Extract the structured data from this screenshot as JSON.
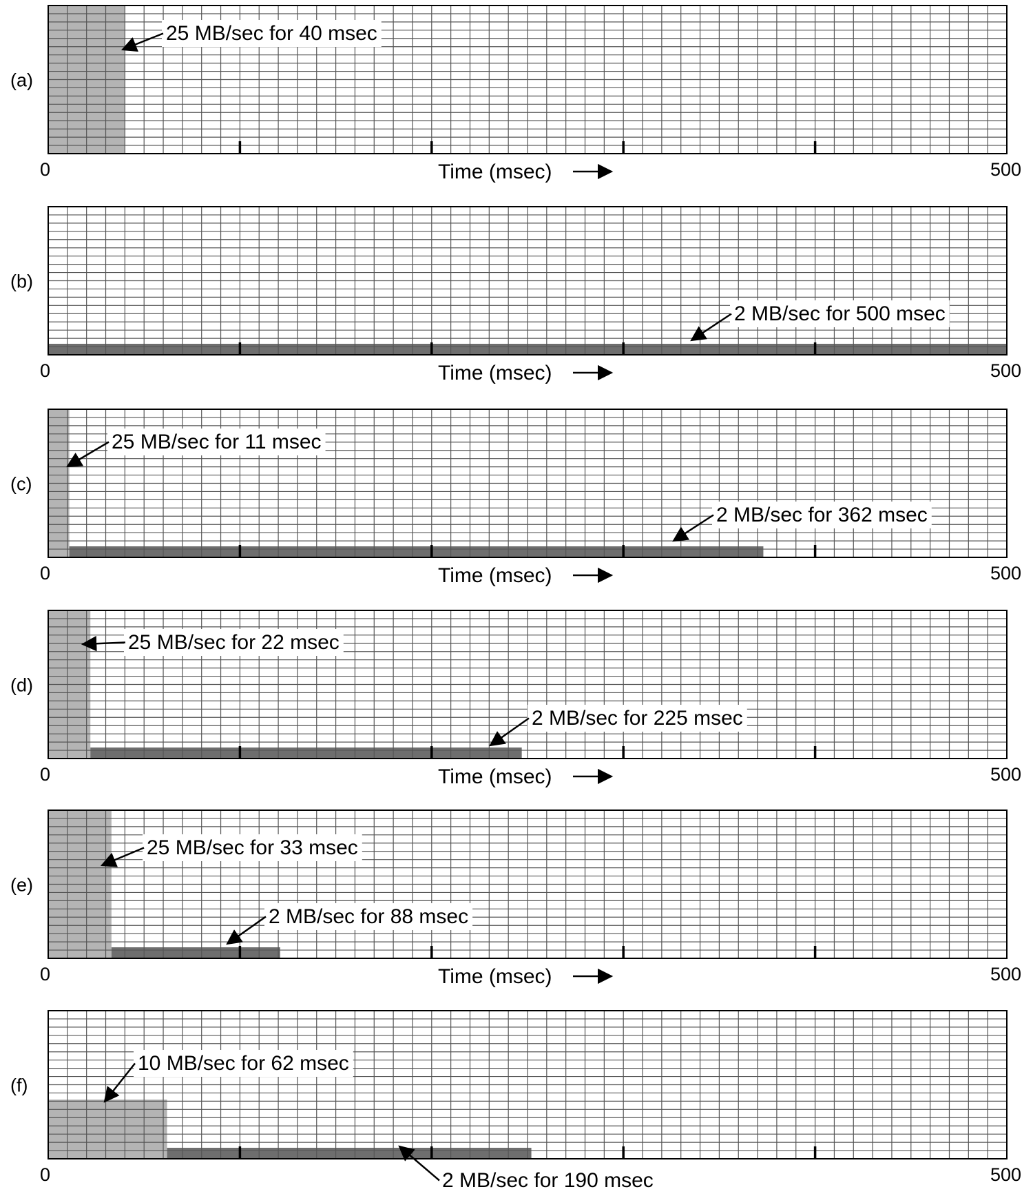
{
  "chart_data": [
    {
      "type": "area",
      "panel_label": "(a)",
      "xlabel": "Time (msec)",
      "xlim": [
        0,
        500
      ],
      "x_tick_labels": [
        "0",
        "500"
      ],
      "bursts": [
        {
          "rate_mb_per_sec": 25,
          "start_msec": 0,
          "duration_msec": 40,
          "label": "25 MB/sec for 40 msec"
        }
      ]
    },
    {
      "type": "area",
      "panel_label": "(b)",
      "xlabel": "Time (msec)",
      "xlim": [
        0,
        500
      ],
      "x_tick_labels": [
        "0",
        "500"
      ],
      "bursts": [
        {
          "rate_mb_per_sec": 2,
          "start_msec": 0,
          "duration_msec": 500,
          "label": "2 MB/sec for 500 msec"
        }
      ]
    },
    {
      "type": "area",
      "panel_label": "(c)",
      "xlabel": "Time (msec)",
      "xlim": [
        0,
        500
      ],
      "x_tick_labels": [
        "0",
        "500"
      ],
      "bursts": [
        {
          "rate_mb_per_sec": 25,
          "start_msec": 0,
          "duration_msec": 11,
          "label": "25 MB/sec for 11 msec"
        },
        {
          "rate_mb_per_sec": 2,
          "start_msec": 11,
          "duration_msec": 362,
          "label": "2 MB/sec for 362 msec"
        }
      ]
    },
    {
      "type": "area",
      "panel_label": "(d)",
      "xlabel": "Time (msec)",
      "xlim": [
        0,
        500
      ],
      "x_tick_labels": [
        "0",
        "500"
      ],
      "bursts": [
        {
          "rate_mb_per_sec": 25,
          "start_msec": 0,
          "duration_msec": 22,
          "label": "25 MB/sec for 22 msec"
        },
        {
          "rate_mb_per_sec": 2,
          "start_msec": 22,
          "duration_msec": 225,
          "label": "2 MB/sec for 225 msec"
        }
      ]
    },
    {
      "type": "area",
      "panel_label": "(e)",
      "xlabel": "Time (msec)",
      "xlim": [
        0,
        500
      ],
      "x_tick_labels": [
        "0",
        "500"
      ],
      "bursts": [
        {
          "rate_mb_per_sec": 25,
          "start_msec": 0,
          "duration_msec": 33,
          "label": "25 MB/sec for 33 msec"
        },
        {
          "rate_mb_per_sec": 2,
          "start_msec": 33,
          "duration_msec": 88,
          "label": "2 MB/sec for 88 msec"
        }
      ]
    },
    {
      "type": "area",
      "panel_label": "(f)",
      "xlabel": "Time (msec)",
      "xlim": [
        0,
        500
      ],
      "x_tick_labels": [
        "0",
        "500"
      ],
      "bursts": [
        {
          "rate_mb_per_sec": 10,
          "start_msec": 0,
          "duration_msec": 62,
          "label": "10 MB/sec for 62 msec"
        },
        {
          "rate_mb_per_sec": 2,
          "start_msec": 62,
          "duration_msec": 190,
          "label": "2 MB/sec for 190 msec"
        }
      ]
    }
  ],
  "colors": {
    "high_rate_fill": "#b4b4b4",
    "low_rate_fill": "#6e6e6e",
    "grid": "#555555",
    "frame": "#000000"
  }
}
